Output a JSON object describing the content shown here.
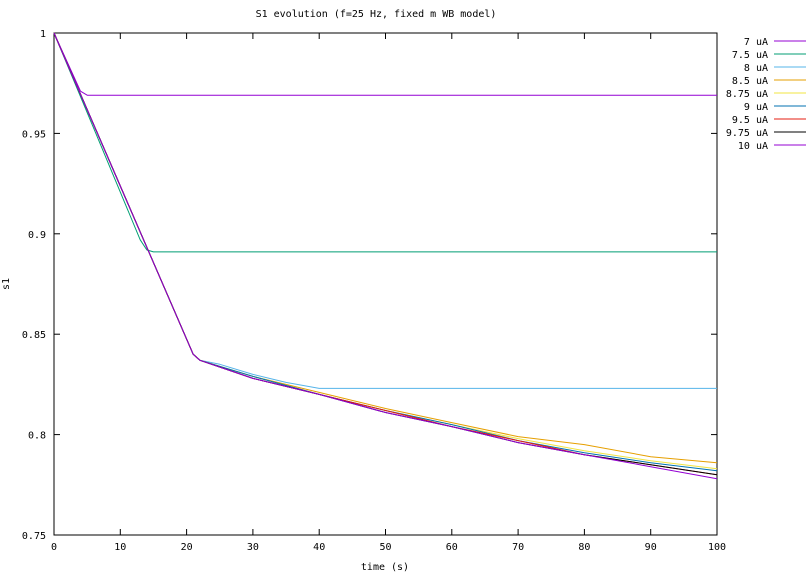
{
  "chart_data": {
    "type": "line",
    "title": "S1 evolution (f=25 Hz, fixed m WB model)",
    "xlabel": "time (s)",
    "ylabel": "s1",
    "xlim": [
      0,
      100
    ],
    "ylim": [
      0.75,
      1.0
    ],
    "xticks": [
      "0",
      "10",
      "20",
      "30",
      "40",
      "50",
      "60",
      "70",
      "80",
      "90",
      "100"
    ],
    "yticks": [
      "0.75",
      "0.8",
      "0.85",
      "0.9",
      "0.95",
      "1"
    ],
    "grid": false,
    "legend_position": "outside-top-right",
    "series": [
      {
        "name": "7 uA",
        "color": "#9400d3",
        "x": [
          0,
          4,
          5,
          100
        ],
        "y": [
          1.0,
          0.971,
          0.969,
          0.969
        ]
      },
      {
        "name": "7.5 uA",
        "color": "#009e73",
        "x": [
          0,
          13,
          14,
          15,
          100
        ],
        "y": [
          1.0,
          0.897,
          0.892,
          0.891,
          0.891
        ]
      },
      {
        "name": "8 uA",
        "color": "#56b4e9",
        "x": [
          0,
          21,
          22,
          25,
          30,
          35,
          40,
          100
        ],
        "y": [
          1.0,
          0.84,
          0.837,
          0.835,
          0.83,
          0.826,
          0.823,
          0.823
        ]
      },
      {
        "name": "8.5 uA",
        "color": "#e69f00",
        "x": [
          0,
          21,
          22,
          30,
          40,
          50,
          60,
          70,
          80,
          90,
          100
        ],
        "y": [
          1.0,
          0.84,
          0.837,
          0.829,
          0.821,
          0.813,
          0.806,
          0.799,
          0.795,
          0.789,
          0.786
        ]
      },
      {
        "name": "8.75 uA",
        "color": "#f0e442",
        "x": [
          0,
          21,
          22,
          30,
          40,
          50,
          60,
          70,
          80,
          90,
          100
        ],
        "y": [
          1.0,
          0.84,
          0.837,
          0.829,
          0.82,
          0.812,
          0.805,
          0.798,
          0.792,
          0.787,
          0.783
        ]
      },
      {
        "name": "9 uA",
        "color": "#0072b2",
        "x": [
          0,
          21,
          22,
          30,
          40,
          50,
          60,
          70,
          80,
          90,
          100
        ],
        "y": [
          1.0,
          0.84,
          0.837,
          0.829,
          0.82,
          0.812,
          0.805,
          0.797,
          0.791,
          0.786,
          0.782
        ]
      },
      {
        "name": "9.5 uA",
        "color": "#e51e10",
        "x": [
          0,
          21,
          22,
          30,
          40,
          50,
          60,
          70,
          80,
          90,
          100
        ],
        "y": [
          1.0,
          0.84,
          0.837,
          0.828,
          0.82,
          0.812,
          0.804,
          0.797,
          0.79,
          0.785,
          0.78
        ]
      },
      {
        "name": "9.75 uA",
        "color": "#000000",
        "x": [
          0,
          21,
          22,
          30,
          40,
          50,
          60,
          70,
          80,
          90,
          100
        ],
        "y": [
          1.0,
          0.84,
          0.837,
          0.828,
          0.82,
          0.811,
          0.804,
          0.796,
          0.79,
          0.785,
          0.78
        ]
      },
      {
        "name": "10 uA",
        "color": "#9400d3",
        "x": [
          0,
          21,
          22,
          30,
          40,
          50,
          60,
          70,
          80,
          90,
          100
        ],
        "y": [
          1.0,
          0.84,
          0.837,
          0.828,
          0.82,
          0.811,
          0.804,
          0.796,
          0.79,
          0.784,
          0.778
        ]
      }
    ]
  }
}
